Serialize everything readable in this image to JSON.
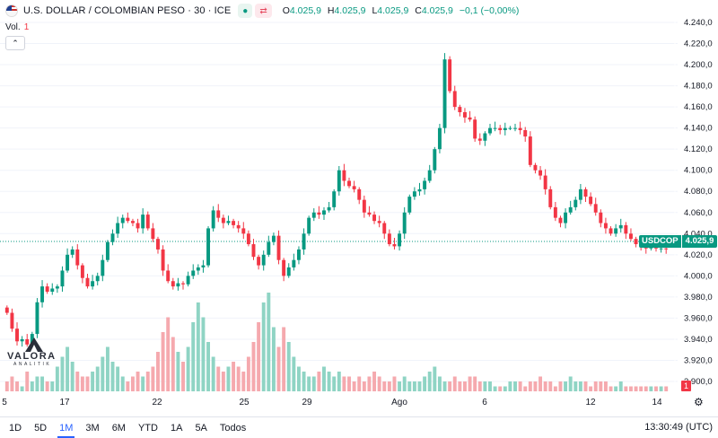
{
  "header": {
    "title": "U.S. DOLLAR / COLOMBIAN PESO · 30 · ICE",
    "open_label": "O",
    "open": "4.025,9",
    "high_label": "H",
    "high": "4.025,9",
    "low_label": "L",
    "low": "4.025,9",
    "close_label": "C",
    "close": "4.025,9",
    "change": "−0,1 (−0,00%)",
    "pill_dot": "●",
    "pill_arrows": "⇄"
  },
  "volume_legend": {
    "label": "Vol.",
    "value": "1"
  },
  "collapse_glyph": "⌃",
  "price_tag": {
    "symbol": "USDCOP",
    "value": "4.025,9"
  },
  "volume_tag": "1",
  "logo": {
    "name": "VALORA",
    "sub": "ANALITIK"
  },
  "ranges": [
    {
      "label": "1D",
      "active": false
    },
    {
      "label": "5D",
      "active": false
    },
    {
      "label": "1M",
      "active": true
    },
    {
      "label": "3M",
      "active": false
    },
    {
      "label": "6M",
      "active": false
    },
    {
      "label": "YTD",
      "active": false
    },
    {
      "label": "1A",
      "active": false
    },
    {
      "label": "5A",
      "active": false
    },
    {
      "label": "Todos",
      "active": false
    }
  ],
  "clock": "13:30:49 (UTC)",
  "colors": {
    "up": "#089981",
    "down": "#f23645",
    "up_volume": "#8fd4c4",
    "down_volume": "#f5a9ae",
    "grid": "#f0f3fa"
  },
  "chart_data": {
    "type": "candlestick",
    "y_ticks": [
      "4.240,0",
      "4.220,0",
      "4.200,0",
      "4.180,0",
      "4.160,0",
      "4.140,0",
      "4.120,0",
      "4.100,0",
      "4.080,0",
      "4.060,0",
      "4.040,0",
      "4.020,0",
      "4.000,0",
      "3.980,0",
      "3.960,0",
      "3.940,0",
      "3.920,0",
      "3.900,0"
    ],
    "ylim": [
      3900,
      4240
    ],
    "x_ticks": [
      "5",
      "17",
      "22",
      "25",
      "29",
      "Ago",
      "6",
      "12",
      "14"
    ],
    "last_price": 4025.9,
    "series_close": [
      3965,
      3950,
      3938,
      3940,
      3935,
      3945,
      3975,
      3990,
      3985,
      3988,
      3990,
      4005,
      4020,
      4025,
      4010,
      3998,
      3990,
      3995,
      4000,
      4015,
      4032,
      4040,
      4050,
      4055,
      4052,
      4050,
      4045,
      4058,
      4045,
      4035,
      4025,
      4005,
      3995,
      3990,
      3993,
      3992,
      4000,
      4005,
      4008,
      4010,
      4045,
      4062,
      4055,
      4050,
      4052,
      4048,
      4045,
      4040,
      4030,
      4018,
      4010,
      4020,
      4032,
      4038,
      4015,
      4000,
      4008,
      4015,
      4025,
      4040,
      4055,
      4060,
      4058,
      4062,
      4065,
      4080,
      4100,
      4090,
      4085,
      4082,
      4072,
      4060,
      4058,
      4052,
      4050,
      4040,
      4030,
      4028,
      4040,
      4060,
      4075,
      4080,
      4082,
      4090,
      4100,
      4120,
      4140,
      4205,
      4175,
      4160,
      4155,
      4150,
      4148,
      4130,
      4128,
      4135,
      4140,
      4140,
      4138,
      4140,
      4140,
      4140,
      4138,
      4132,
      4105,
      4100,
      4095,
      4082,
      4065,
      4055,
      4050,
      4060,
      4065,
      4072,
      4082,
      4075,
      4068,
      4060,
      4050,
      4045,
      4040,
      4045,
      4048,
      4040,
      4035,
      4030,
      4028,
      4026,
      4028,
      4026,
      4026,
      4025.9
    ],
    "series_volume": [
      2,
      3,
      2,
      1,
      4,
      2,
      3,
      3,
      2,
      2,
      5,
      7,
      9,
      6,
      4,
      3,
      3,
      4,
      5,
      7,
      9,
      6,
      5,
      3,
      2,
      3,
      4,
      3,
      4,
      5,
      8,
      12,
      15,
      11,
      8,
      6,
      9,
      14,
      18,
      15,
      10,
      7,
      5,
      4,
      5,
      6,
      5,
      4,
      7,
      10,
      14,
      18,
      20,
      13,
      9,
      13,
      10,
      7,
      5,
      4,
      3,
      3,
      4,
      5,
      4,
      3,
      4,
      3,
      3,
      2,
      3,
      2,
      3,
      4,
      3,
      2,
      2,
      3,
      2,
      3,
      2,
      2,
      2,
      3,
      4,
      5,
      3,
      2,
      2,
      3,
      2,
      2,
      3,
      3,
      2,
      2,
      2,
      1,
      1,
      1,
      2,
      2,
      2,
      1,
      2,
      2,
      3,
      2,
      2,
      1,
      2,
      2,
      3,
      2,
      2,
      2,
      1,
      2,
      2,
      2,
      1,
      1,
      2,
      1,
      1,
      1,
      1,
      1,
      1,
      1,
      1,
      1
    ]
  }
}
